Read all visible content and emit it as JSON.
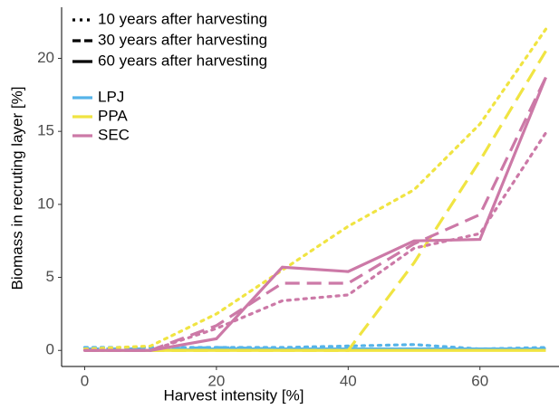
{
  "chart_data": {
    "type": "line",
    "x_label": "Harvest intensity [%]",
    "y_label": "Biomass in recruting layer [%]",
    "x": [
      0,
      10,
      20,
      30,
      40,
      50,
      60,
      70
    ],
    "xlim": [
      -3.5,
      72
    ],
    "xticks": [
      0,
      20,
      40,
      60
    ],
    "ylim": [
      -1.1,
      23.5
    ],
    "yticks": [
      0,
      5,
      10,
      15,
      20
    ],
    "linetypes": [
      {
        "label": "10 years after harvesting",
        "dash": "dotted"
      },
      {
        "label": "30 years after harvesting",
        "dash": "dashed"
      },
      {
        "label": "60 years after harvesting",
        "dash": "solid"
      }
    ],
    "series": [
      {
        "name": "LPJ",
        "color": "#56b4e9",
        "lines": [
          {
            "values": [
              0.2,
              0.2,
              0.2,
              0.2,
              0.3,
              0.4,
              0.1,
              0.2
            ]
          },
          {
            "values": [
              0.1,
              0.1,
              0.2,
              0.1,
              0.1,
              0.1,
              0.1,
              0.1
            ]
          },
          {
            "values": [
              0,
              0,
              0.1,
              0.1,
              0.1,
              0.1,
              0.1,
              0.1
            ]
          }
        ]
      },
      {
        "name": "PPA",
        "color": "#f0e442",
        "lines": [
          {
            "values": [
              0.1,
              0.3,
              2.5,
              5.5,
              8.5,
              11,
              15.5,
              22
            ]
          },
          {
            "values": [
              0,
              0,
              0,
              0,
              0,
              6,
              13,
              20.5
            ]
          },
          {
            "values": [
              0,
              0,
              0,
              0,
              0,
              0,
              0,
              0
            ]
          }
        ]
      },
      {
        "name": "SEC",
        "color": "#cc79a7",
        "lines": [
          {
            "values": [
              0,
              0,
              1.5,
              3.4,
              3.8,
              7,
              8,
              14.9
            ]
          },
          {
            "values": [
              0,
              0,
              1.7,
              4.6,
              4.6,
              7.3,
              9.3,
              18.7
            ]
          },
          {
            "values": [
              0,
              0,
              0.8,
              5.7,
              5.4,
              7.5,
              7.6,
              18.7
            ]
          }
        ]
      }
    ]
  }
}
